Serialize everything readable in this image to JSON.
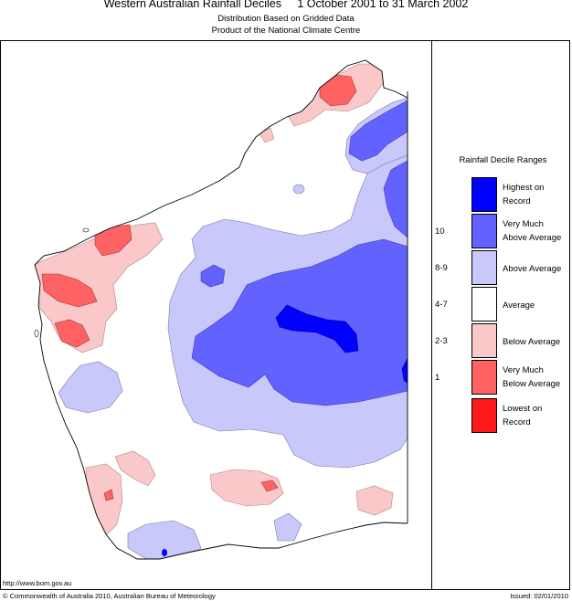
{
  "header": {
    "title": "Western Australian Rainfall Deciles",
    "period": "1 October 2001 to 31 March 2002",
    "subtitle1": "Distribution Based on Gridded Data",
    "subtitle2": "Product of the National Climate Centre"
  },
  "legend": {
    "title": "Rainfall Decile Ranges",
    "items": [
      {
        "key": "",
        "label1": "Highest on",
        "label2": "Record",
        "color": "#0000ff"
      },
      {
        "key": "10",
        "label1": "Very Much",
        "label2": "Above Average",
        "color": "#6262ff"
      },
      {
        "key": "8-9",
        "label1": "Above Average",
        "label2": "",
        "color": "#c8c8fa"
      },
      {
        "key": "4-7",
        "label1": "Average",
        "label2": "",
        "color": "#ffffff"
      },
      {
        "key": "2-3",
        "label1": "Below Average",
        "label2": "",
        "color": "#fac8c8"
      },
      {
        "key": "1",
        "label1": "Very Much",
        "label2": "Below Average",
        "color": "#ff6262"
      },
      {
        "key": "",
        "label1": "Lowest on",
        "label2": "Record",
        "color": "#ff1a1a"
      }
    ]
  },
  "footer": {
    "url": "http://www.bom.gov.au",
    "copyright": "© Commonwealth of Australia 2010, Australian Bureau of Meteorology",
    "issued": "Issued: 02/01/2010"
  }
}
